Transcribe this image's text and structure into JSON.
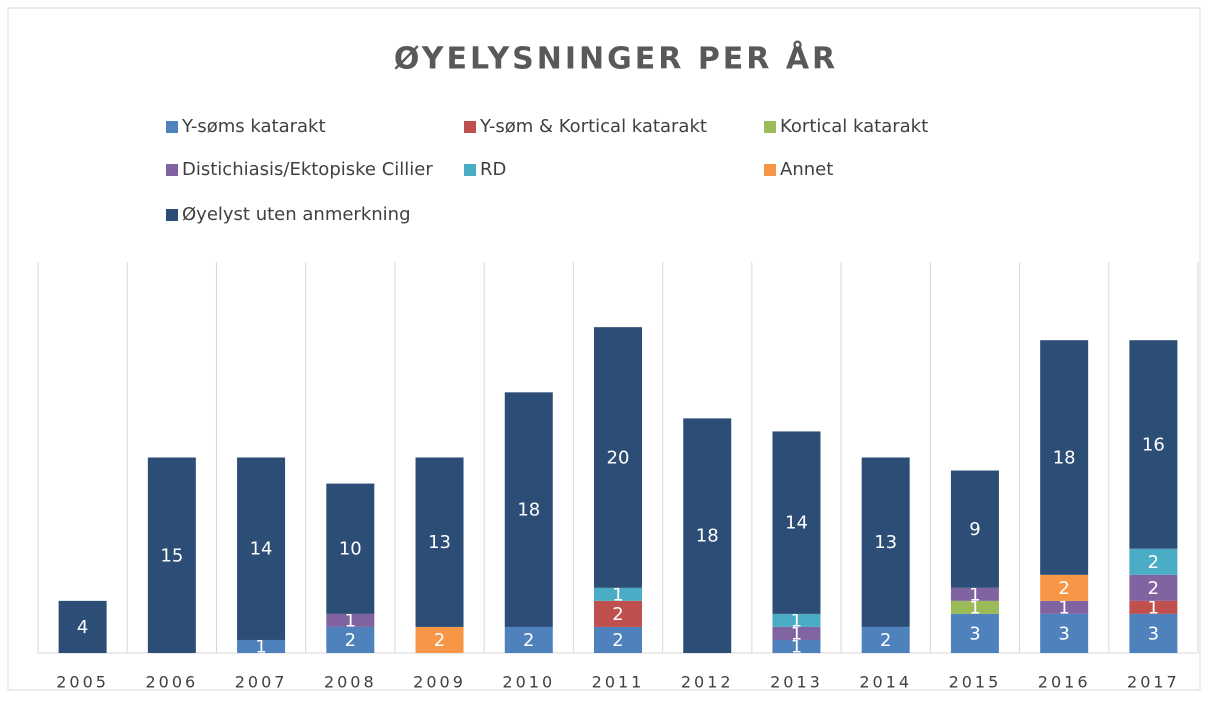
{
  "chart_data": {
    "type": "stacked-bar",
    "title": "ØYELYSNINGER PER ÅR",
    "categories": [
      "2005",
      "2006",
      "2007",
      "2008",
      "2009",
      "2010",
      "2011",
      "2012",
      "2013",
      "2014",
      "2015",
      "2016",
      "2017"
    ],
    "series": [
      {
        "name": "Y-søms katarakt",
        "color": "#4f81bd",
        "values": [
          null,
          null,
          1,
          2,
          null,
          2,
          2,
          null,
          1,
          2,
          3,
          3,
          3
        ]
      },
      {
        "name": "Y-søm & Kortical katarakt",
        "color": "#c0504d",
        "values": [
          null,
          null,
          null,
          null,
          null,
          null,
          2,
          null,
          null,
          null,
          null,
          null,
          1
        ]
      },
      {
        "name": "Kortical katarakt",
        "color": "#9bbb59",
        "values": [
          null,
          null,
          null,
          null,
          null,
          null,
          null,
          null,
          null,
          null,
          1,
          null,
          null
        ]
      },
      {
        "name": "Distichiasis/Ektopiske Cillier",
        "color": "#8064a2",
        "values": [
          null,
          null,
          null,
          1,
          null,
          null,
          null,
          null,
          1,
          null,
          1,
          1,
          2
        ]
      },
      {
        "name": "RD",
        "color": "#4bacc6",
        "values": [
          null,
          null,
          null,
          null,
          null,
          null,
          1,
          null,
          1,
          null,
          null,
          null,
          2
        ]
      },
      {
        "name": "Annet",
        "color": "#f79646",
        "values": [
          null,
          null,
          null,
          null,
          2,
          null,
          null,
          null,
          null,
          null,
          null,
          2,
          null
        ]
      },
      {
        "name": "Øyelyst uten anmerkning",
        "color": "#2c4d75",
        "values": [
          4,
          15,
          14,
          10,
          13,
          18,
          20,
          18,
          14,
          13,
          9,
          18,
          16
        ]
      }
    ],
    "ylim": [
      0,
      30
    ],
    "grid": true
  }
}
